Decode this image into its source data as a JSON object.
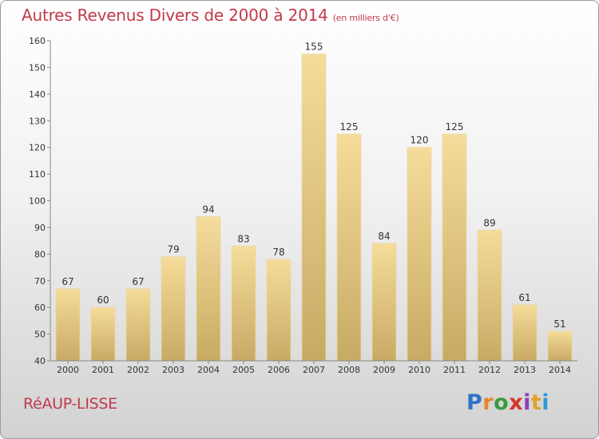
{
  "header": {
    "title": "Autres Revenus Divers de 2000 à 2014",
    "subtitle": "(en milliers d'€)"
  },
  "footer": {
    "commune": "RéAUP-LISSE",
    "logo_text": "Proxiti"
  },
  "colors": {
    "bar_top": "#f6dc9a",
    "bar_bottom": "#c7aa64",
    "title": "#c23a4a"
  },
  "chart_data": {
    "type": "bar",
    "title": "Autres Revenus Divers de 2000 à 2014",
    "subtitle": "(en milliers d'€)",
    "categories": [
      "2000",
      "2001",
      "2002",
      "2003",
      "2004",
      "2005",
      "2006",
      "2007",
      "2008",
      "2009",
      "2010",
      "2011",
      "2012",
      "2013",
      "2014"
    ],
    "values": [
      67,
      60,
      67,
      79,
      94,
      83,
      78,
      155,
      125,
      84,
      120,
      125,
      89,
      61,
      51
    ],
    "ylim": [
      40,
      160
    ],
    "yticks": [
      40,
      50,
      60,
      70,
      80,
      90,
      100,
      110,
      120,
      130,
      140,
      150,
      160
    ],
    "grid": false,
    "legend": "none"
  }
}
